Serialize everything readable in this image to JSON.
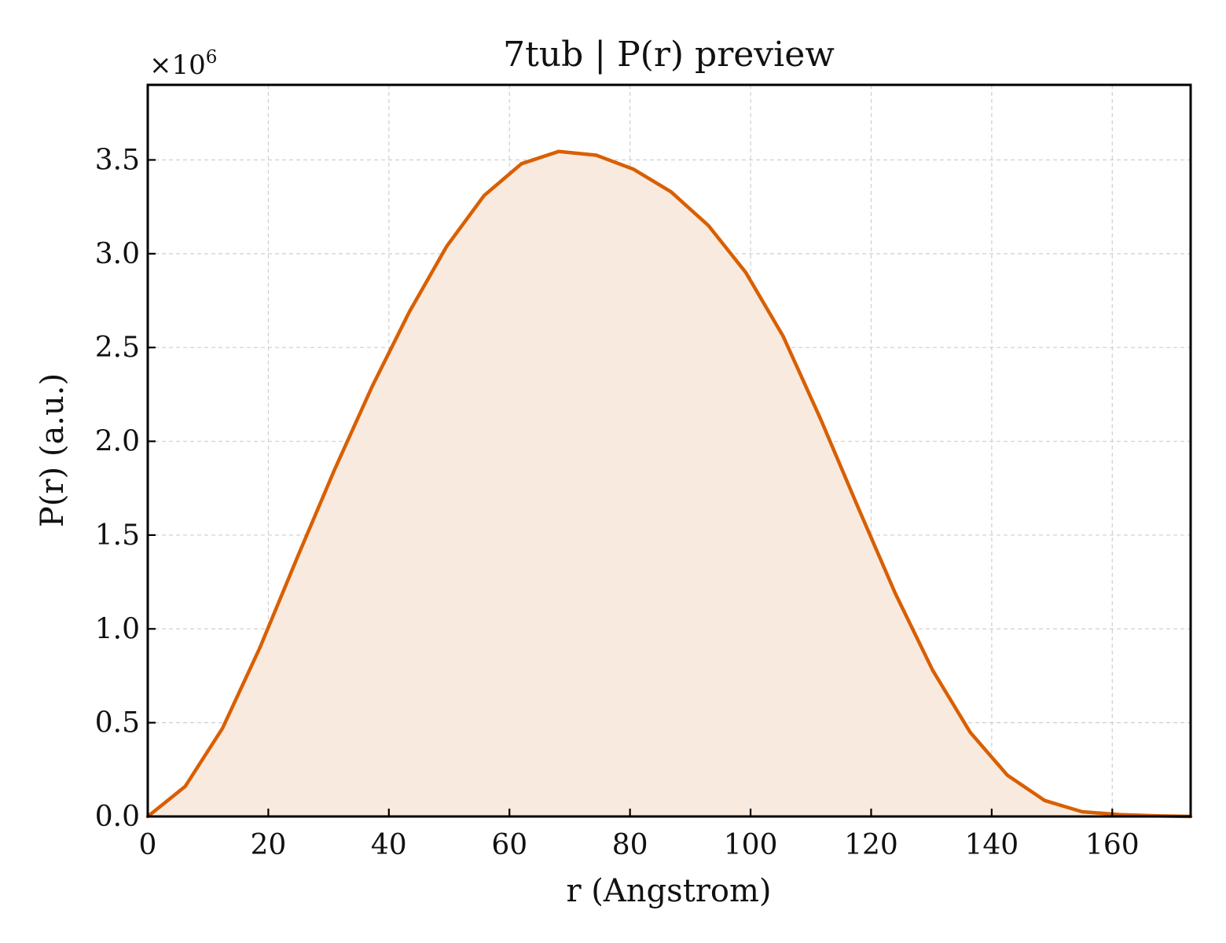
{
  "chart_data": {
    "type": "area",
    "title": "7tub | P(r) preview",
    "xlabel": "r (Angstrom)",
    "ylabel": "P(r) (a.u.)",
    "y_multiplier_base": "×10",
    "y_multiplier_exp": "6",
    "xlim": [
      0,
      173
    ],
    "ylim": [
      0,
      3.9
    ],
    "x_ticks": [
      0,
      20,
      40,
      60,
      80,
      100,
      120,
      140,
      160
    ],
    "x_tick_labels": [
      "0",
      "20",
      "40",
      "60",
      "80",
      "100",
      "120",
      "140",
      "160"
    ],
    "y_ticks": [
      0,
      0.5,
      1.0,
      1.5,
      2.0,
      2.5,
      3.0,
      3.5
    ],
    "y_tick_labels": [
      "0.0",
      "0.5",
      "1.0",
      "1.5",
      "2.0",
      "2.5",
      "3.0",
      "3.5"
    ],
    "grid": true,
    "line_color": "#d95f02",
    "fill_color": "#f9eadf",
    "series": [
      {
        "x": [
          0,
          6.2,
          12.4,
          18.6,
          24.8,
          31.0,
          37.2,
          43.4,
          49.6,
          55.8,
          62.0,
          68.2,
          74.4,
          80.6,
          86.8,
          93.0,
          99.2,
          105.4,
          111.6,
          117.8,
          124.0,
          130.2,
          136.4,
          142.6,
          148.8,
          155.0,
          161.2,
          167.4,
          173.0
        ],
        "y": [
          0.0,
          0.16,
          0.47,
          0.9,
          1.38,
          1.85,
          2.29,
          2.69,
          3.04,
          3.31,
          3.48,
          3.545,
          3.525,
          3.45,
          3.33,
          3.15,
          2.9,
          2.56,
          2.12,
          1.65,
          1.19,
          0.78,
          0.45,
          0.22,
          0.085,
          0.025,
          0.01,
          0.003,
          0.0
        ]
      }
    ]
  }
}
